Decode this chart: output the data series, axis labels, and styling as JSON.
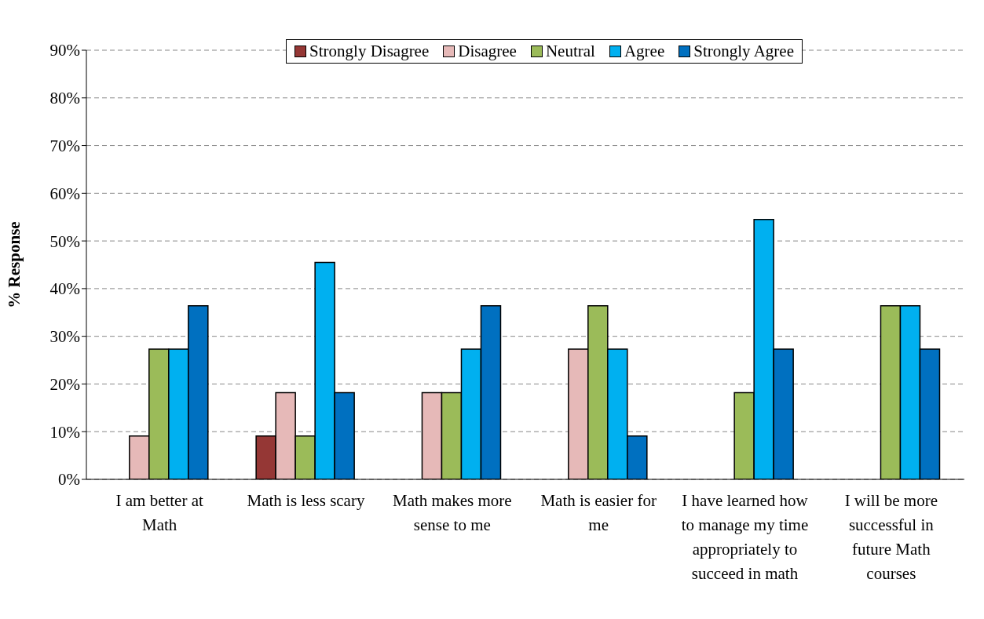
{
  "chart_data": {
    "type": "bar",
    "ylabel": "% Response",
    "categories": [
      "I am better at Math",
      "Math is less scary",
      "Math makes more sense to me",
      "Math is easier for me",
      "I have learned how to manage my time appropriately to succeed in math",
      "I will be more successful in future Math courses"
    ],
    "series": [
      {
        "name": "Strongly Disagree",
        "color": "#953735",
        "values": [
          0,
          9.1,
          0,
          0,
          0,
          0
        ]
      },
      {
        "name": "Disagree",
        "color": "#e6b9b8",
        "values": [
          9.1,
          18.2,
          18.2,
          27.3,
          0,
          0
        ]
      },
      {
        "name": "Neutral",
        "color": "#9bbb59",
        "values": [
          27.3,
          9.1,
          18.2,
          36.4,
          18.2,
          36.4
        ]
      },
      {
        "name": "Agree",
        "color": "#00b0f0",
        "values": [
          27.3,
          45.5,
          27.3,
          27.3,
          54.5,
          36.4
        ]
      },
      {
        "name": "Strongly Agree",
        "color": "#0070c0",
        "values": [
          36.4,
          18.2,
          36.4,
          9.1,
          27.3,
          27.3
        ]
      }
    ],
    "ylim": [
      0,
      90
    ],
    "yticks": [
      {
        "value": 0,
        "label": "0%"
      },
      {
        "value": 10,
        "label": "10%"
      },
      {
        "value": 20,
        "label": "20%"
      },
      {
        "value": 30,
        "label": "30%"
      },
      {
        "value": 40,
        "label": "40%"
      },
      {
        "value": 50,
        "label": "50%"
      },
      {
        "value": 60,
        "label": "60%"
      },
      {
        "value": 70,
        "label": "70%"
      },
      {
        "value": 80,
        "label": "80%"
      },
      {
        "value": 90,
        "label": "90%"
      }
    ],
    "grid": "y",
    "legend": "top"
  }
}
